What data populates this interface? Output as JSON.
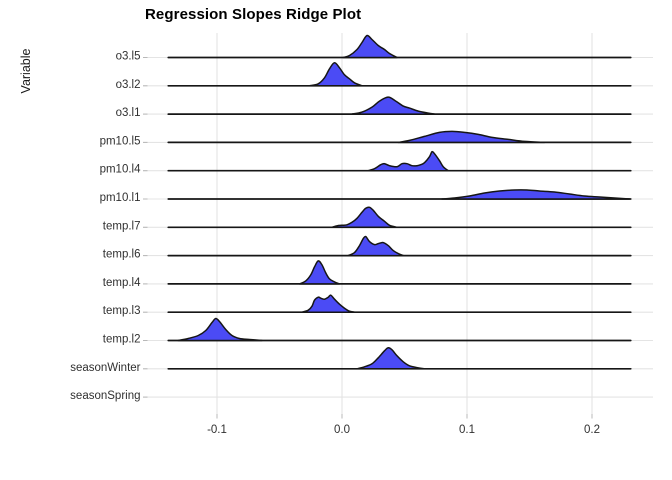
{
  "chart_data": {
    "type": "ridgeline",
    "title": "Regression Slopes Ridge Plot",
    "xlabel": "",
    "ylabel": "Variable",
    "x_tick_values": [
      -0.1,
      0.0,
      0.1,
      0.2
    ],
    "x_tick_labels": [
      "-0.1",
      "0.0",
      "0.1",
      "0.2"
    ],
    "xlim": [
      -0.155,
      0.25
    ],
    "ridge_line_span": [
      -0.139,
      0.231
    ],
    "grid": true,
    "legend": "none",
    "colors": {
      "fill": "#4B4BF5",
      "outline": "#161616",
      "gridline": "#e4e4e4",
      "tick": "#b8b8b8",
      "axis_text": "#303030"
    },
    "point_format": "[slope_value, relative_density_height]",
    "categories_top_to_bottom": [
      "o3.l5",
      "o3.l2",
      "o3.l1",
      "pm10.l5",
      "pm10.l4",
      "pm10.l1",
      "temp.l7",
      "temp.l6",
      "temp.l4",
      "temp.l3",
      "temp.l2",
      "seasonWinter",
      "seasonSpring"
    ],
    "series": [
      {
        "label": "o3.l5",
        "peak_x": 0.02,
        "points": [
          [
            0.001,
            0
          ],
          [
            0.006,
            2
          ],
          [
            0.012,
            8
          ],
          [
            0.016,
            15
          ],
          [
            0.02,
            22
          ],
          [
            0.024,
            18
          ],
          [
            0.029,
            12
          ],
          [
            0.034,
            8
          ],
          [
            0.038,
            4
          ],
          [
            0.044,
            0
          ]
        ]
      },
      {
        "label": "o3.l2",
        "peak_x": -0.006,
        "points": [
          [
            -0.026,
            0
          ],
          [
            -0.019,
            2
          ],
          [
            -0.014,
            8
          ],
          [
            -0.01,
            17
          ],
          [
            -0.006,
            23
          ],
          [
            -0.002,
            18
          ],
          [
            0.002,
            11
          ],
          [
            0.006,
            7
          ],
          [
            0.01,
            3
          ],
          [
            0.016,
            0
          ]
        ]
      },
      {
        "label": "o3.l1",
        "peak_x": 0.037,
        "points": [
          [
            0.008,
            0
          ],
          [
            0.016,
            2
          ],
          [
            0.024,
            7
          ],
          [
            0.03,
            13
          ],
          [
            0.037,
            17
          ],
          [
            0.043,
            13
          ],
          [
            0.049,
            8
          ],
          [
            0.054,
            6
          ],
          [
            0.061,
            3
          ],
          [
            0.069,
            1
          ],
          [
            0.074,
            0
          ]
        ]
      },
      {
        "label": "pm10.l5",
        "peak_x": 0.09,
        "points": [
          [
            0.045,
            0
          ],
          [
            0.054,
            2
          ],
          [
            0.066,
            6
          ],
          [
            0.078,
            10
          ],
          [
            0.088,
            11
          ],
          [
            0.098,
            10
          ],
          [
            0.109,
            8
          ],
          [
            0.12,
            5
          ],
          [
            0.133,
            3
          ],
          [
            0.146,
            1
          ],
          [
            0.162,
            0
          ]
        ]
      },
      {
        "label": "pm10.l4",
        "peak_x": 0.072,
        "points": [
          [
            0.021,
            0
          ],
          [
            0.026,
            2
          ],
          [
            0.031,
            6
          ],
          [
            0.034,
            7
          ],
          [
            0.038,
            5
          ],
          [
            0.044,
            4
          ],
          [
            0.048,
            7
          ],
          [
            0.052,
            7
          ],
          [
            0.056,
            5
          ],
          [
            0.06,
            5
          ],
          [
            0.063,
            6
          ],
          [
            0.066,
            8
          ],
          [
            0.07,
            14
          ],
          [
            0.072,
            19
          ],
          [
            0.074,
            17
          ],
          [
            0.078,
            10
          ],
          [
            0.081,
            4
          ],
          [
            0.085,
            0
          ]
        ]
      },
      {
        "label": "pm10.l1",
        "peak_x": 0.148,
        "points": [
          [
            0.08,
            0
          ],
          [
            0.09,
            1
          ],
          [
            0.102,
            3
          ],
          [
            0.114,
            6
          ],
          [
            0.126,
            8
          ],
          [
            0.138,
            9
          ],
          [
            0.148,
            9
          ],
          [
            0.158,
            8
          ],
          [
            0.17,
            7
          ],
          [
            0.182,
            5
          ],
          [
            0.194,
            3
          ],
          [
            0.206,
            2
          ],
          [
            0.218,
            1
          ],
          [
            0.23,
            0
          ]
        ]
      },
      {
        "label": "temp.l7",
        "peak_x": 0.021,
        "points": [
          [
            -0.008,
            0
          ],
          [
            -0.004,
            1.5
          ],
          [
            0.0,
            2
          ],
          [
            0.004,
            2.5
          ],
          [
            0.008,
            5
          ],
          [
            0.012,
            9
          ],
          [
            0.016,
            15
          ],
          [
            0.019,
            19
          ],
          [
            0.022,
            20
          ],
          [
            0.025,
            17
          ],
          [
            0.029,
            11
          ],
          [
            0.034,
            6
          ],
          [
            0.038,
            2
          ],
          [
            0.044,
            0
          ]
        ]
      },
      {
        "label": "temp.l6",
        "peak_x": 0.019,
        "points": [
          [
            0.005,
            0
          ],
          [
            0.01,
            3
          ],
          [
            0.014,
            10
          ],
          [
            0.017,
            17
          ],
          [
            0.019,
            19
          ],
          [
            0.022,
            14
          ],
          [
            0.026,
            11
          ],
          [
            0.029,
            12
          ],
          [
            0.033,
            13
          ],
          [
            0.037,
            10
          ],
          [
            0.041,
            5
          ],
          [
            0.045,
            2
          ],
          [
            0.049,
            0
          ]
        ]
      },
      {
        "label": "temp.l4",
        "peak_x": -0.019,
        "points": [
          [
            -0.034,
            0
          ],
          [
            -0.029,
            3
          ],
          [
            -0.025,
            9
          ],
          [
            -0.022,
            17
          ],
          [
            -0.019,
            23
          ],
          [
            -0.016,
            19
          ],
          [
            -0.013,
            11
          ],
          [
            -0.01,
            5
          ],
          [
            -0.006,
            2
          ],
          [
            -0.002,
            0
          ]
        ]
      },
      {
        "label": "temp.l3",
        "peak_x": -0.009,
        "points": [
          [
            -0.032,
            0
          ],
          [
            -0.027,
            2
          ],
          [
            -0.024,
            6
          ],
          [
            -0.022,
            12
          ],
          [
            -0.019,
            15
          ],
          [
            -0.017,
            14
          ],
          [
            -0.014,
            13
          ],
          [
            -0.011,
            15
          ],
          [
            -0.009,
            17
          ],
          [
            -0.006,
            13
          ],
          [
            -0.002,
            8
          ],
          [
            0.002,
            4
          ],
          [
            0.006,
            1
          ],
          [
            0.01,
            0
          ]
        ]
      },
      {
        "label": "temp.l2",
        "peak_x": -0.101,
        "points": [
          [
            -0.131,
            0
          ],
          [
            -0.123,
            2
          ],
          [
            -0.115,
            5
          ],
          [
            -0.109,
            10
          ],
          [
            -0.104,
            18
          ],
          [
            -0.101,
            22
          ],
          [
            -0.098,
            19
          ],
          [
            -0.093,
            11
          ],
          [
            -0.088,
            5
          ],
          [
            -0.082,
            2
          ],
          [
            -0.074,
            1
          ],
          [
            -0.064,
            0
          ]
        ]
      },
      {
        "label": "seasonWinter",
        "peak_x": 0.037,
        "points": [
          [
            0.012,
            0
          ],
          [
            0.018,
            2
          ],
          [
            0.024,
            5
          ],
          [
            0.029,
            11
          ],
          [
            0.034,
            18
          ],
          [
            0.037,
            21
          ],
          [
            0.04,
            19
          ],
          [
            0.044,
            13
          ],
          [
            0.049,
            7
          ],
          [
            0.054,
            3
          ],
          [
            0.061,
            1
          ],
          [
            0.066,
            0
          ]
        ]
      },
      {
        "label": "seasonSpring",
        "peak_x": null,
        "points": []
      }
    ]
  }
}
